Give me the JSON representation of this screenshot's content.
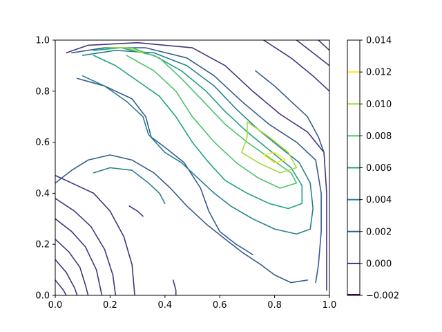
{
  "chart_data": {
    "type": "contour",
    "title": "",
    "xlabel": "",
    "ylabel": "",
    "xlim": [
      0.0,
      1.0
    ],
    "ylim": [
      0.0,
      1.0
    ],
    "x_ticks": [
      "0.0",
      "0.2",
      "0.4",
      "0.6",
      "0.8",
      "1.0"
    ],
    "y_ticks": [
      "0.0",
      "0.2",
      "0.4",
      "0.6",
      "0.8",
      "1.0"
    ],
    "grid": false,
    "colormap": "viridis",
    "levels": [
      -0.002,
      0.0,
      0.002,
      0.004,
      0.006,
      0.008,
      0.01,
      0.012,
      0.014
    ],
    "level_labels": [
      "−0.002",
      "0.000",
      "0.002",
      "0.004",
      "0.006",
      "0.008",
      "0.010",
      "0.012",
      "0.014"
    ],
    "level_colors": [
      "#440154",
      "#46327e",
      "#365c8d",
      "#277f8e",
      "#1fa187",
      "#4ac16d",
      "#a0da39",
      "#fde725"
    ],
    "peak": {
      "x": 0.8,
      "y": 0.53,
      "approx_value": 0.012
    },
    "colorbar": {
      "position": "right"
    },
    "contours": [
      {
        "level": 0.0,
        "points": [
          [
            0.04,
            0.95
          ],
          [
            0.12,
            0.98
          ],
          [
            0.3,
            0.99
          ],
          [
            0.5,
            0.97
          ],
          [
            0.62,
            0.9
          ],
          [
            0.72,
            0.8
          ],
          [
            0.82,
            0.71
          ],
          [
            0.92,
            0.64
          ],
          [
            0.98,
            0.56
          ],
          [
            0.99,
            0.4
          ],
          [
            0.99,
            0.2
          ],
          [
            0.99,
            0.02
          ]
        ]
      },
      {
        "level": 0.0,
        "points": [
          [
            0.76,
            1.0
          ],
          [
            0.86,
            0.93
          ],
          [
            0.94,
            0.86
          ],
          [
            1.0,
            0.8
          ]
        ]
      },
      {
        "level": 0.0,
        "points": [
          [
            0.88,
            1.0
          ],
          [
            0.94,
            0.95
          ],
          [
            1.0,
            0.9
          ]
        ]
      },
      {
        "level": 0.0,
        "points": [
          [
            0.96,
            1.0
          ],
          [
            1.0,
            0.96
          ]
        ]
      },
      {
        "level": 0.0,
        "points": [
          [
            0.0,
            0.47
          ],
          [
            0.08,
            0.43
          ],
          [
            0.14,
            0.4
          ],
          [
            0.2,
            0.33
          ],
          [
            0.25,
            0.23
          ],
          [
            0.28,
            0.12
          ],
          [
            0.29,
            0.0
          ]
        ]
      },
      {
        "level": 0.0,
        "points": [
          [
            0.0,
            0.38
          ],
          [
            0.07,
            0.33
          ],
          [
            0.13,
            0.27
          ],
          [
            0.18,
            0.18
          ],
          [
            0.21,
            0.08
          ],
          [
            0.22,
            0.0
          ]
        ]
      },
      {
        "level": 0.0,
        "points": [
          [
            0.0,
            0.3
          ],
          [
            0.06,
            0.25
          ],
          [
            0.11,
            0.19
          ],
          [
            0.15,
            0.1
          ],
          [
            0.17,
            0.0
          ]
        ]
      },
      {
        "level": 0.0,
        "points": [
          [
            0.0,
            0.22
          ],
          [
            0.05,
            0.17
          ],
          [
            0.09,
            0.11
          ],
          [
            0.11,
            0.04
          ],
          [
            0.12,
            0.0
          ]
        ]
      },
      {
        "level": 0.0,
        "points": [
          [
            0.0,
            0.14
          ],
          [
            0.04,
            0.09
          ],
          [
            0.07,
            0.03
          ],
          [
            0.08,
            0.0
          ]
        ]
      },
      {
        "level": 0.0,
        "points": [
          [
            0.0,
            0.06
          ],
          [
            0.03,
            0.02
          ],
          [
            0.04,
            0.0
          ]
        ]
      },
      {
        "level": 0.0,
        "points": [
          [
            0.27,
            0.35
          ],
          [
            0.3,
            0.33
          ],
          [
            0.32,
            0.31
          ]
        ]
      },
      {
        "level": 0.0,
        "points": [
          [
            0.43,
            0.06
          ],
          [
            0.44,
            0.02
          ],
          [
            0.44,
            0.0
          ]
        ]
      },
      {
        "level": 0.002,
        "points": [
          [
            0.06,
            0.95
          ],
          [
            0.18,
            0.97
          ],
          [
            0.33,
            0.97
          ],
          [
            0.48,
            0.93
          ],
          [
            0.58,
            0.86
          ],
          [
            0.68,
            0.76
          ],
          [
            0.78,
            0.67
          ],
          [
            0.88,
            0.6
          ],
          [
            0.95,
            0.53
          ],
          [
            0.97,
            0.4
          ],
          [
            0.97,
            0.25
          ],
          [
            0.96,
            0.12
          ],
          [
            0.95,
            0.05
          ]
        ]
      },
      {
        "level": 0.002,
        "points": [
          [
            0.73,
            0.88
          ],
          [
            0.8,
            0.82
          ],
          [
            0.86,
            0.76
          ],
          [
            0.92,
            0.7
          ],
          [
            0.96,
            0.62
          ],
          [
            0.98,
            0.56
          ]
        ]
      },
      {
        "level": 0.002,
        "points": [
          [
            0.0,
            0.44
          ],
          [
            0.06,
            0.49
          ],
          [
            0.12,
            0.53
          ],
          [
            0.2,
            0.55
          ],
          [
            0.28,
            0.53
          ],
          [
            0.36,
            0.48
          ],
          [
            0.42,
            0.42
          ],
          [
            0.48,
            0.35
          ],
          [
            0.55,
            0.28
          ],
          [
            0.62,
            0.22
          ],
          [
            0.68,
            0.17
          ],
          [
            0.75,
            0.12
          ],
          [
            0.8,
            0.08
          ],
          [
            0.86,
            0.05
          ],
          [
            0.92,
            0.06
          ]
        ]
      },
      {
        "level": 0.002,
        "points": [
          [
            0.08,
            0.85
          ],
          [
            0.18,
            0.82
          ],
          [
            0.28,
            0.77
          ],
          [
            0.33,
            0.7
          ],
          [
            0.35,
            0.62
          ],
          [
            0.4,
            0.58
          ],
          [
            0.47,
            0.52
          ],
          [
            0.53,
            0.42
          ],
          [
            0.56,
            0.33
          ],
          [
            0.6,
            0.25
          ],
          [
            0.66,
            0.2
          ],
          [
            0.72,
            0.16
          ]
        ]
      },
      {
        "level": 0.004,
        "points": [
          [
            0.1,
            0.94
          ],
          [
            0.22,
            0.96
          ],
          [
            0.36,
            0.95
          ],
          [
            0.48,
            0.9
          ],
          [
            0.58,
            0.82
          ],
          [
            0.66,
            0.73
          ],
          [
            0.74,
            0.65
          ],
          [
            0.82,
            0.58
          ],
          [
            0.89,
            0.52
          ],
          [
            0.93,
            0.44
          ],
          [
            0.94,
            0.34
          ],
          [
            0.93,
            0.26
          ],
          [
            0.88,
            0.24
          ],
          [
            0.8,
            0.26
          ],
          [
            0.72,
            0.3
          ],
          [
            0.64,
            0.35
          ],
          [
            0.58,
            0.4
          ],
          [
            0.52,
            0.46
          ],
          [
            0.46,
            0.52
          ],
          [
            0.4,
            0.56
          ],
          [
            0.34,
            0.63
          ],
          [
            0.32,
            0.7
          ],
          [
            0.26,
            0.76
          ],
          [
            0.18,
            0.82
          ],
          [
            0.1,
            0.86
          ]
        ]
      },
      {
        "level": 0.004,
        "points": [
          [
            0.14,
            0.48
          ],
          [
            0.2,
            0.5
          ],
          [
            0.28,
            0.49
          ],
          [
            0.34,
            0.44
          ],
          [
            0.38,
            0.4
          ],
          [
            0.4,
            0.36
          ]
        ]
      },
      {
        "level": 0.006,
        "points": [
          [
            0.14,
            0.96
          ],
          [
            0.24,
            0.97
          ],
          [
            0.36,
            0.94
          ],
          [
            0.46,
            0.88
          ],
          [
            0.55,
            0.8
          ],
          [
            0.62,
            0.72
          ],
          [
            0.7,
            0.64
          ],
          [
            0.78,
            0.57
          ],
          [
            0.86,
            0.5
          ],
          [
            0.9,
            0.43
          ],
          [
            0.9,
            0.36
          ],
          [
            0.85,
            0.34
          ],
          [
            0.78,
            0.36
          ],
          [
            0.7,
            0.4
          ],
          [
            0.62,
            0.45
          ],
          [
            0.56,
            0.52
          ],
          [
            0.5,
            0.6
          ],
          [
            0.44,
            0.7
          ],
          [
            0.38,
            0.78
          ],
          [
            0.3,
            0.84
          ],
          [
            0.22,
            0.9
          ],
          [
            0.14,
            0.94
          ]
        ]
      },
      {
        "level": 0.008,
        "points": [
          [
            0.18,
            0.97
          ],
          [
            0.28,
            0.97
          ],
          [
            0.38,
            0.93
          ],
          [
            0.46,
            0.85
          ],
          [
            0.54,
            0.76
          ],
          [
            0.62,
            0.67
          ],
          [
            0.7,
            0.6
          ],
          [
            0.78,
            0.54
          ],
          [
            0.86,
            0.48
          ],
          [
            0.88,
            0.44
          ],
          [
            0.82,
            0.42
          ],
          [
            0.74,
            0.46
          ],
          [
            0.66,
            0.52
          ],
          [
            0.58,
            0.6
          ],
          [
            0.5,
            0.7
          ],
          [
            0.44,
            0.8
          ],
          [
            0.36,
            0.88
          ],
          [
            0.26,
            0.94
          ]
        ]
      },
      {
        "level": 0.01,
        "points": [
          [
            0.7,
            0.68
          ],
          [
            0.78,
            0.62
          ],
          [
            0.85,
            0.56
          ],
          [
            0.88,
            0.5
          ],
          [
            0.82,
            0.48
          ],
          [
            0.74,
            0.52
          ],
          [
            0.68,
            0.56
          ],
          [
            0.7,
            0.62
          ],
          [
            0.7,
            0.68
          ]
        ]
      },
      {
        "level": 0.01,
        "points": [
          [
            0.2,
            0.97
          ],
          [
            0.26,
            0.97
          ],
          [
            0.32,
            0.95
          ]
        ]
      },
      {
        "level": 0.012,
        "points": [
          [
            0.76,
            0.55
          ],
          [
            0.8,
            0.52
          ],
          [
            0.84,
            0.53
          ],
          [
            0.8,
            0.56
          ],
          [
            0.76,
            0.55
          ]
        ]
      }
    ]
  }
}
